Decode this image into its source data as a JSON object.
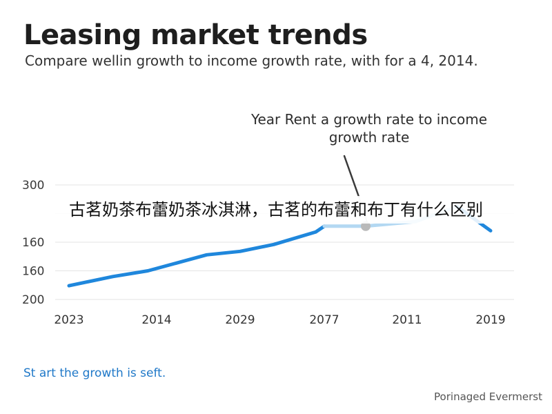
{
  "chart_data": {
    "type": "line",
    "title": "Leasing market trends",
    "subtitle": "Compare wellin growth to income growth rate, with for a 4, 2014.",
    "annotation": "Year Rent a growth rate to income growth rate",
    "xlabel": "",
    "ylabel": "",
    "x_tick_labels": [
      "2023",
      "2014",
      "2029",
      "2077",
      "2011",
      "2019"
    ],
    "y_tick_labels": [
      "300",
      "",
      "160",
      "160",
      "200"
    ],
    "grid": true,
    "series": [
      {
        "color": "#1f87dc",
        "highlight_color": "#b3d8f2",
        "highlight_from_index": 8,
        "points": [
          {
            "x": 0.0,
            "y": 0.12
          },
          {
            "x": 0.5,
            "y": 0.2
          },
          {
            "x": 0.9,
            "y": 0.25
          },
          {
            "x": 1.3,
            "y": 0.33
          },
          {
            "x": 1.6,
            "y": 0.39
          },
          {
            "x": 2.0,
            "y": 0.42
          },
          {
            "x": 2.4,
            "y": 0.48
          },
          {
            "x": 2.9,
            "y": 0.59
          },
          {
            "x": 3.0,
            "y": 0.64
          },
          {
            "x": 3.5,
            "y": 0.64
          },
          {
            "x": 4.1,
            "y": 0.68
          },
          {
            "x": 4.6,
            "y": 0.81
          },
          {
            "x": 5.0,
            "y": 0.6
          }
        ],
        "marker_index": 9,
        "marker_color": "#b9b9b9"
      }
    ]
  },
  "overlay_text": "古茗奶茶布蕾奶茶冰淇淋，古茗的布蕾和布丁有什么区别",
  "footnote": "St art the growth is seft.",
  "source": "Porinaged Evermerst"
}
